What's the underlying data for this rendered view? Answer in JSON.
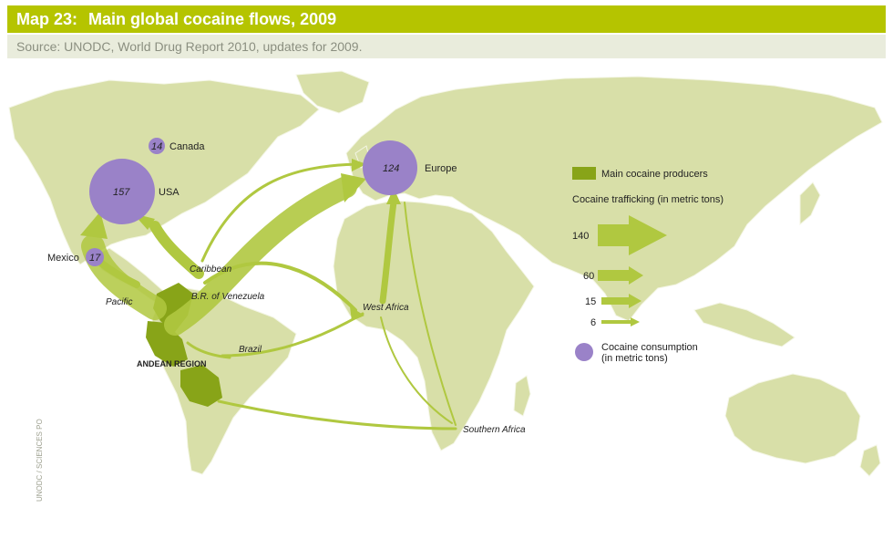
{
  "header": {
    "map_number": "Map 23:",
    "title": "Main global cocaine flows, 2009",
    "source": "Source: UNODC, World Drug Report 2010, updates for 2009."
  },
  "colors": {
    "land": "#d8dfa8",
    "flow": "#b0c840",
    "producer": "#88a418",
    "consumption": "#9a82c8",
    "title_bar": "#b5c400"
  },
  "consumption": [
    {
      "name": "Canada",
      "value": "14"
    },
    {
      "name": "USA",
      "value": "157"
    },
    {
      "name": "Mexico",
      "value": "17"
    },
    {
      "name": "Europe",
      "value": "124"
    }
  ],
  "routes": [
    "Caribbean",
    "B.R. of Venezuela",
    "Pacific",
    "Brazil",
    "West Africa",
    "Southern Africa"
  ],
  "region_label": "ANDEAN REGION",
  "legend": {
    "producers": "Main cocaine producers",
    "trafficking_title": "Cocaine trafficking (in metric tons)",
    "trafficking_values": [
      "140",
      "60",
      "15",
      "6"
    ],
    "consumption_label_line1": "Cocaine consumption",
    "consumption_label_line2": "(in metric tons)"
  },
  "credit": "UNODC / SCIENCES PO",
  "icons": [
    "consumption-circle-icon",
    "flow-arrow-icon",
    "producer-swatch-icon"
  ]
}
